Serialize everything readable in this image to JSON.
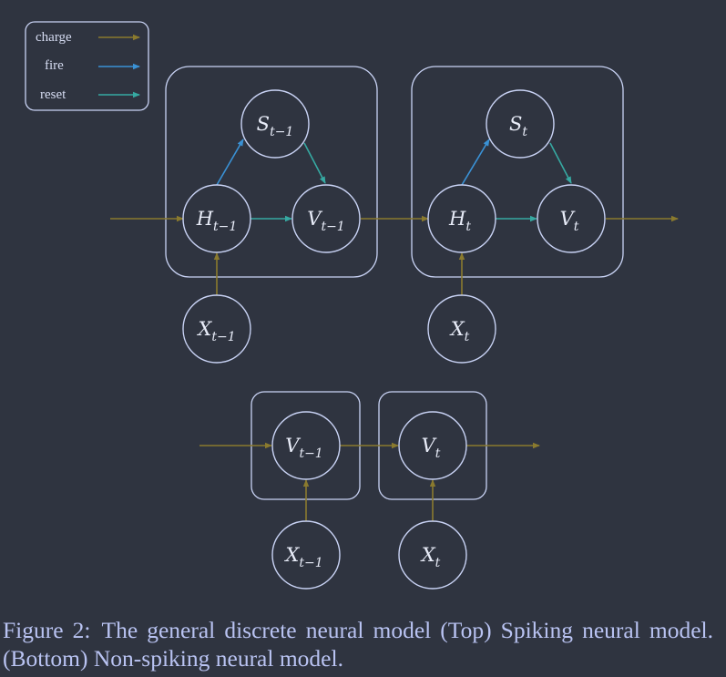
{
  "colors": {
    "background": "#2f3440",
    "outline": "#c9d3f5",
    "charge": "#8a7a2e",
    "fire": "#3a92d6",
    "reset": "#36a9a2",
    "caption": "#b9c3f2"
  },
  "legend": {
    "items": [
      {
        "key": "charge",
        "label": "charge"
      },
      {
        "key": "fire",
        "label": "fire"
      },
      {
        "key": "reset",
        "label": "reset"
      }
    ]
  },
  "top_diagram": {
    "nodes": [
      {
        "id": "H_prev",
        "base": "H",
        "sub": "t−1"
      },
      {
        "id": "S_prev",
        "base": "S",
        "sub": "t−1"
      },
      {
        "id": "V_prev",
        "base": "V",
        "sub": "t−1"
      },
      {
        "id": "X_prev",
        "base": "X",
        "sub": "t−1"
      },
      {
        "id": "H_cur",
        "base": "H",
        "sub": "t"
      },
      {
        "id": "S_cur",
        "base": "S",
        "sub": "t"
      },
      {
        "id": "V_cur",
        "base": "V",
        "sub": "t"
      },
      {
        "id": "X_cur",
        "base": "X",
        "sub": "t"
      }
    ]
  },
  "bottom_diagram": {
    "nodes": [
      {
        "id": "bV_prev",
        "base": "V",
        "sub": "t−1"
      },
      {
        "id": "bX_prev",
        "base": "X",
        "sub": "t−1"
      },
      {
        "id": "bV_cur",
        "base": "V",
        "sub": "t"
      },
      {
        "id": "bX_cur",
        "base": "X",
        "sub": "t"
      }
    ]
  },
  "caption": {
    "number": "Figure 2:",
    "text": "The general discrete neural model (Top) Spiking neural model. (Bottom) Non-spiking neural model."
  }
}
